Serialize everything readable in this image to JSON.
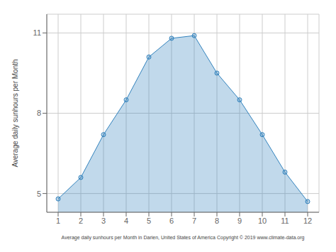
{
  "chart_data": {
    "type": "area",
    "x": [
      1,
      2,
      3,
      4,
      5,
      6,
      7,
      8,
      9,
      10,
      11,
      12
    ],
    "values": [
      4.8,
      5.6,
      7.2,
      8.5,
      10.1,
      10.8,
      10.9,
      9.5,
      8.5,
      7.2,
      5.8,
      4.7
    ],
    "xlabel": "Average daily sunhours per Month in Darien, United States of America Copyright © 2019 www.climate-data.org",
    "ylabel": "Average daily sunhours per Month",
    "xlim": [
      0.5,
      12.5
    ],
    "ylim": [
      4.3,
      11.7
    ],
    "xticks": [
      1,
      2,
      3,
      4,
      5,
      6,
      7,
      8,
      9,
      10,
      11,
      12
    ],
    "yticks": [
      5,
      8,
      11
    ],
    "grid": true,
    "marker": "circle"
  }
}
